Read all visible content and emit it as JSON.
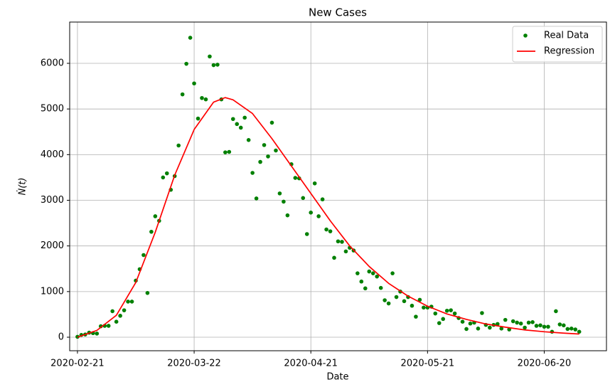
{
  "chart_data": {
    "type": "scatter",
    "title": "New Cases",
    "x_label": "Date",
    "y_label": "Ṅ(t)",
    "xlim": [
      "2020-02-19",
      "2020-07-06"
    ],
    "xticks": [
      "2020-02-21",
      "2020-03-22",
      "2020-04-21",
      "2020-05-21",
      "2020-06-20"
    ],
    "ylim": [
      -296,
      6904
    ],
    "yticks": [
      0,
      1000,
      2000,
      3000,
      4000,
      5000,
      6000
    ],
    "grid": true,
    "legend": "upper right",
    "series": [
      {
        "name": "Real Data",
        "type": "scatter",
        "color": "#008000",
        "x": [
          "2020-02-21",
          "2020-02-22",
          "2020-02-23",
          "2020-02-24",
          "2020-02-25",
          "2020-02-26",
          "2020-02-27",
          "2020-02-28",
          "2020-02-29",
          "2020-03-01",
          "2020-03-02",
          "2020-03-03",
          "2020-03-04",
          "2020-03-05",
          "2020-03-06",
          "2020-03-07",
          "2020-03-08",
          "2020-03-09",
          "2020-03-10",
          "2020-03-11",
          "2020-03-12",
          "2020-03-13",
          "2020-03-14",
          "2020-03-15",
          "2020-03-16",
          "2020-03-17",
          "2020-03-18",
          "2020-03-19",
          "2020-03-20",
          "2020-03-21",
          "2020-03-22",
          "2020-03-23",
          "2020-03-24",
          "2020-03-25",
          "2020-03-26",
          "2020-03-27",
          "2020-03-28",
          "2020-03-29",
          "2020-03-30",
          "2020-03-31",
          "2020-04-01",
          "2020-04-02",
          "2020-04-03",
          "2020-04-04",
          "2020-04-05",
          "2020-04-06",
          "2020-04-07",
          "2020-04-08",
          "2020-04-09",
          "2020-04-10",
          "2020-04-11",
          "2020-04-12",
          "2020-04-13",
          "2020-04-14",
          "2020-04-15",
          "2020-04-16",
          "2020-04-17",
          "2020-04-18",
          "2020-04-19",
          "2020-04-20",
          "2020-04-21",
          "2020-04-22",
          "2020-04-23",
          "2020-04-24",
          "2020-04-25",
          "2020-04-26",
          "2020-04-27",
          "2020-04-28",
          "2020-04-29",
          "2020-04-30",
          "2020-05-01",
          "2020-05-02",
          "2020-05-03",
          "2020-05-04",
          "2020-05-05",
          "2020-05-06",
          "2020-05-07",
          "2020-05-08",
          "2020-05-09",
          "2020-05-10",
          "2020-05-11",
          "2020-05-12",
          "2020-05-13",
          "2020-05-14",
          "2020-05-15",
          "2020-05-16",
          "2020-05-17",
          "2020-05-18",
          "2020-05-19",
          "2020-05-20",
          "2020-05-21",
          "2020-05-22",
          "2020-05-23",
          "2020-05-24",
          "2020-05-25",
          "2020-05-26",
          "2020-05-27",
          "2020-05-28",
          "2020-05-29",
          "2020-05-30",
          "2020-05-31",
          "2020-06-01",
          "2020-06-02",
          "2020-06-03",
          "2020-06-04",
          "2020-06-05",
          "2020-06-06",
          "2020-06-07",
          "2020-06-08",
          "2020-06-09",
          "2020-06-10",
          "2020-06-11",
          "2020-06-12",
          "2020-06-13",
          "2020-06-14",
          "2020-06-15",
          "2020-06-16",
          "2020-06-17",
          "2020-06-18",
          "2020-06-19",
          "2020-06-20",
          "2020-06-21",
          "2020-06-22",
          "2020-06-23",
          "2020-06-24",
          "2020-06-25",
          "2020-06-26",
          "2020-06-27",
          "2020-06-28",
          "2020-06-29"
        ],
        "values": [
          10,
          50,
          60,
          100,
          90,
          80,
          240,
          250,
          250,
          570,
          340,
          470,
          590,
          780,
          780,
          1240,
          1490,
          1800,
          970,
          2310,
          2650,
          2550,
          3500,
          3590,
          3230,
          3530,
          4200,
          5320,
          5990,
          6560,
          5560,
          4790,
          5240,
          5210,
          6150,
          5960,
          5970,
          5210,
          4050,
          4060,
          4780,
          4670,
          4590,
          4810,
          4320,
          3600,
          3040,
          3840,
          4210,
          3960,
          4700,
          4090,
          3150,
          2970,
          2670,
          3790,
          3490,
          3480,
          3050,
          2260,
          2730,
          3370,
          2650,
          3020,
          2360,
          2320,
          1740,
          2100,
          2090,
          1880,
          1960,
          1900,
          1400,
          1220,
          1070,
          1440,
          1400,
          1330,
          1080,
          810,
          740,
          1400,
          880,
          1000,
          790,
          880,
          690,
          450,
          820,
          650,
          650,
          670,
          520,
          310,
          400,
          580,
          590,
          520,
          420,
          340,
          180,
          300,
          320,
          190,
          530,
          270,
          210,
          270,
          290,
          190,
          380,
          170,
          350,
          320,
          300,
          210,
          320,
          330,
          250,
          260,
          230,
          230,
          120,
          570,
          280,
          260,
          180,
          190,
          170,
          120
        ]
      },
      {
        "name": "Regression",
        "type": "line",
        "color": "#ff0000",
        "x": [
          "2020-02-21",
          "2020-02-26",
          "2020-03-02",
          "2020-03-07",
          "2020-03-12",
          "2020-03-17",
          "2020-03-22",
          "2020-03-27",
          "2020-03-30",
          "2020-04-01",
          "2020-04-06",
          "2020-04-11",
          "2020-04-16",
          "2020-04-21",
          "2020-04-26",
          "2020-05-01",
          "2020-05-06",
          "2020-05-11",
          "2020-05-16",
          "2020-05-21",
          "2020-05-26",
          "2020-05-31",
          "2020-06-05",
          "2020-06-10",
          "2020-06-15",
          "2020-06-20",
          "2020-06-25",
          "2020-06-29"
        ],
        "values": [
          0,
          150,
          480,
          1200,
          2300,
          3550,
          4550,
          5150,
          5250,
          5200,
          4900,
          4350,
          3750,
          3150,
          2550,
          2000,
          1550,
          1180,
          900,
          680,
          510,
          390,
          290,
          220,
          160,
          120,
          90,
          70
        ]
      }
    ]
  }
}
